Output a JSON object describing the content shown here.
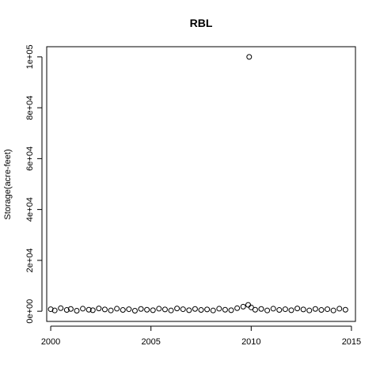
{
  "chart_data": {
    "type": "scatter",
    "title": "RBL",
    "xlabel": "",
    "ylabel": "Storage(acre-feet)",
    "xlim": [
      1999.8,
      2015.2
    ],
    "ylim": [
      -4000,
      104000
    ],
    "x_ticks": [
      2000,
      2005,
      2010,
      2015
    ],
    "x_tick_labels": [
      "2000",
      "2005",
      "2010",
      "2015"
    ],
    "y_ticks": [
      0,
      20000,
      40000,
      60000,
      80000,
      100000
    ],
    "y_tick_labels": [
      "0e+00",
      "2e+04",
      "4e+04",
      "6e+04",
      "8e+04",
      "1e+05"
    ],
    "grid": false,
    "marker": "open-circle",
    "series": [
      {
        "x": [
          2000.0,
          2000.2,
          2000.5,
          2000.8,
          2001.0,
          2001.3,
          2001.6,
          2001.9,
          2002.1,
          2002.4,
          2002.7,
          2003.0,
          2003.3,
          2003.6,
          2003.9,
          2004.2,
          2004.5,
          2004.8,
          2005.1,
          2005.4,
          2005.7,
          2006.0,
          2006.3,
          2006.6,
          2006.9,
          2007.2,
          2007.5,
          2007.8,
          2008.1,
          2008.4,
          2008.7,
          2009.0,
          2009.3,
          2009.6,
          2009.85,
          2010.0,
          2010.2,
          2010.5,
          2010.8,
          2011.1,
          2011.4,
          2011.7,
          2012.0,
          2012.3,
          2012.6,
          2012.9,
          2013.2,
          2013.5,
          2013.8,
          2014.1,
          2014.4,
          2014.7,
          2009.9
        ],
        "y": [
          800,
          300,
          1200,
          500,
          900,
          200,
          1000,
          600,
          400,
          1100,
          700,
          300,
          1000,
          500,
          800,
          200,
          900,
          600,
          400,
          1000,
          700,
          300,
          1100,
          800,
          400,
          900,
          500,
          700,
          300,
          1000,
          600,
          400,
          1200,
          1800,
          2500,
          1500,
          600,
          900,
          300,
          1000,
          500,
          800,
          400,
          1100,
          700,
          300,
          900,
          500,
          800,
          300,
          1000,
          600,
          100000
        ]
      }
    ]
  }
}
